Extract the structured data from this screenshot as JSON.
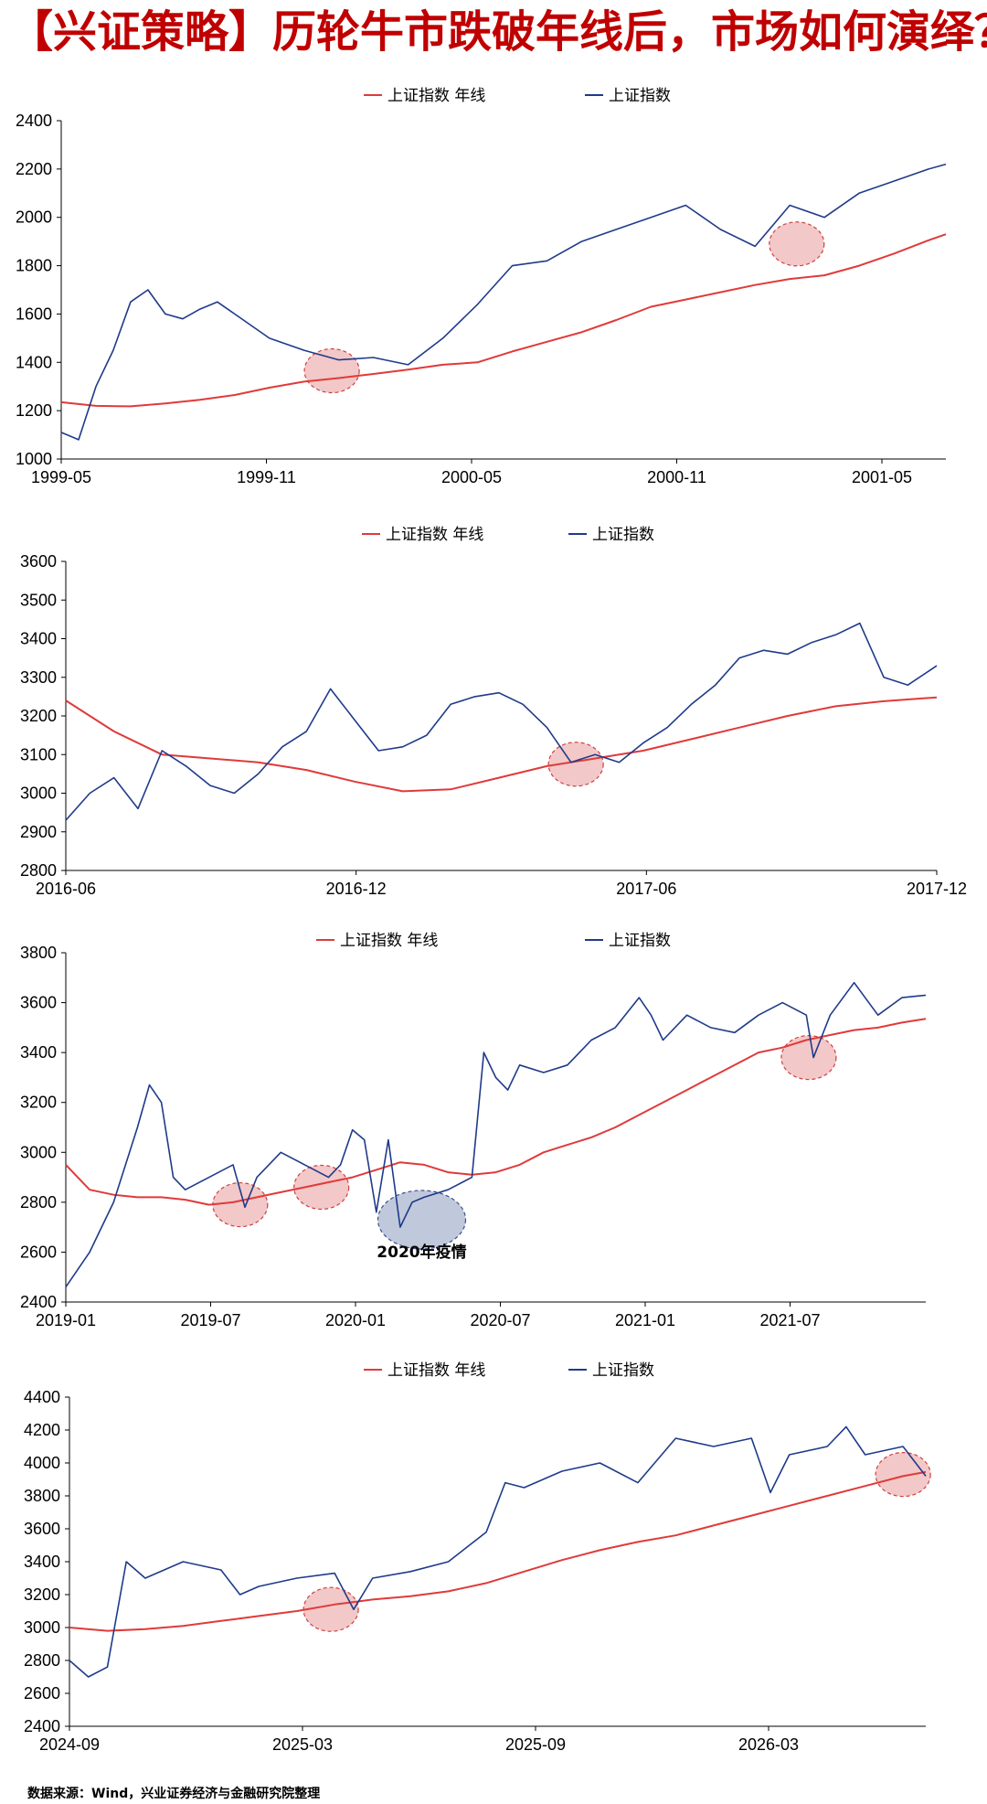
{
  "page": {
    "title": "【兴证策略】历轮牛市跌破年线后，市场如何演绎？",
    "source": "数据来源：Wind，兴业证券经济与金融研究院整理"
  },
  "colors": {
    "title": "#c00000",
    "ma_line": "#e03a3a",
    "index_line": "#1f3a8a",
    "highlight_red": "#e89a9a",
    "highlight_blue": "#8c9bbf"
  },
  "chart_data": [
    {
      "type": "line",
      "legend": [
        "上证指数 年线",
        "上证指数"
      ],
      "x_ticks": [
        "1999-05",
        "1999-11",
        "2000-05",
        "2000-11",
        "2001-05"
      ],
      "ylim": [
        1000,
        2400
      ],
      "y_ticks": [
        1000,
        1200,
        1400,
        1600,
        1800,
        2000,
        2200,
        2400
      ],
      "xlim": [
        0,
        25.5
      ],
      "series": [
        {
          "name": "上证指数 年线",
          "x": [
            0,
            1,
            2,
            3,
            4,
            5,
            6,
            7,
            8,
            9,
            10,
            11,
            12,
            13,
            14,
            15,
            16,
            17,
            18,
            19,
            20,
            21,
            22,
            23,
            24,
            25,
            25.5
          ],
          "y": [
            1235,
            1220,
            1218,
            1230,
            1245,
            1265,
            1295,
            1320,
            1335,
            1352,
            1370,
            1390,
            1400,
            1445,
            1485,
            1525,
            1575,
            1630,
            1660,
            1690,
            1720,
            1745,
            1760,
            1800,
            1850,
            1905,
            1930
          ]
        },
        {
          "name": "上证指数",
          "x": [
            0,
            0.5,
            1,
            1.5,
            2,
            2.5,
            3,
            3.5,
            4,
            4.5,
            5,
            6,
            7,
            8,
            9,
            10,
            11,
            12,
            13,
            14,
            15,
            16,
            17,
            18,
            19,
            20,
            21,
            22,
            23,
            24,
            25,
            25.5
          ],
          "y": [
            1110,
            1080,
            1300,
            1450,
            1650,
            1700,
            1600,
            1580,
            1620,
            1650,
            1600,
            1500,
            1450,
            1410,
            1420,
            1390,
            1500,
            1640,
            1800,
            1820,
            1900,
            1950,
            2000,
            2050,
            1950,
            1880,
            2050,
            2000,
            2100,
            2150,
            2200,
            2220
          ]
        }
      ],
      "highlights": [
        {
          "x": 7.8,
          "y": 1365,
          "color": "red"
        },
        {
          "x": 21.2,
          "y": 1890,
          "color": "red"
        }
      ],
      "annotations": []
    },
    {
      "type": "line",
      "legend": [
        "上证指数 年线",
        "上证指数"
      ],
      "x_ticks": [
        "2016-06",
        "2016-12",
        "2017-06",
        "2017-12"
      ],
      "ylim": [
        2800,
        3600
      ],
      "y_ticks": [
        2800,
        2900,
        3000,
        3100,
        3200,
        3300,
        3400,
        3500,
        3600
      ],
      "xlim": [
        0,
        18.1
      ],
      "series": [
        {
          "name": "上证指数 年线",
          "x": [
            0,
            1,
            2,
            3,
            4,
            5,
            6,
            7,
            8,
            9,
            10,
            11,
            12,
            13,
            14,
            15,
            16,
            17,
            18.1
          ],
          "y": [
            3240,
            3160,
            3100,
            3090,
            3080,
            3060,
            3030,
            3005,
            3010,
            3040,
            3070,
            3090,
            3110,
            3140,
            3170,
            3200,
            3225,
            3238,
            3248
          ]
        },
        {
          "name": "上证指数",
          "x": [
            0,
            0.5,
            1,
            1.5,
            2,
            2.5,
            3,
            3.5,
            4,
            4.5,
            5,
            5.5,
            6,
            6.5,
            7,
            7.5,
            8,
            8.5,
            9,
            9.5,
            10,
            10.5,
            11,
            11.5,
            12,
            12.5,
            13,
            13.5,
            14,
            14.5,
            15,
            15.5,
            16,
            16.5,
            17,
            17.5,
            18.1
          ],
          "y": [
            2930,
            3000,
            3040,
            2960,
            3110,
            3070,
            3020,
            3000,
            3050,
            3120,
            3160,
            3270,
            3190,
            3110,
            3120,
            3150,
            3230,
            3250,
            3260,
            3230,
            3170,
            3080,
            3100,
            3080,
            3130,
            3170,
            3230,
            3280,
            3350,
            3370,
            3360,
            3390,
            3410,
            3440,
            3300,
            3280,
            3330
          ]
        }
      ],
      "highlights": [
        {
          "x": 10.6,
          "y": 3075,
          "color": "red"
        }
      ],
      "annotations": []
    },
    {
      "type": "line",
      "legend": [
        "上证指数 年线",
        "上证指数"
      ],
      "x_ticks": [
        "2019-01",
        "2019-07",
        "2020-01",
        "2020-07",
        "2021-01",
        "2021-07"
      ],
      "ylim": [
        2400,
        3800
      ],
      "y_ticks": [
        2400,
        2600,
        2800,
        3000,
        3200,
        3400,
        3600,
        3800
      ],
      "xlim": [
        0,
        36
      ],
      "series": [
        {
          "name": "上证指数 年线",
          "x": [
            0,
            1,
            2,
            3,
            4,
            5,
            6,
            7,
            8,
            9,
            10,
            11,
            12,
            13,
            14,
            15,
            16,
            17,
            18,
            19,
            20,
            21,
            22,
            23,
            24,
            25,
            26,
            27,
            28,
            29,
            30,
            31,
            32,
            33,
            34,
            35,
            36
          ],
          "y": [
            2950,
            2850,
            2830,
            2820,
            2820,
            2810,
            2790,
            2800,
            2820,
            2840,
            2860,
            2880,
            2900,
            2930,
            2960,
            2950,
            2920,
            2910,
            2920,
            2950,
            3000,
            3030,
            3060,
            3100,
            3150,
            3200,
            3250,
            3300,
            3350,
            3400,
            3420,
            3450,
            3470,
            3490,
            3500,
            3520,
            3535
          ]
        },
        {
          "name": "上证指数",
          "x": [
            0,
            1,
            2,
            3,
            3.5,
            4,
            4.5,
            5,
            6,
            7,
            7.5,
            8,
            9,
            10,
            11,
            11.5,
            12,
            12.5,
            13,
            13.5,
            14,
            14.5,
            15,
            16,
            17,
            17.5,
            18,
            18.5,
            19,
            20,
            21,
            22,
            23,
            24,
            24.5,
            25,
            26,
            27,
            28,
            29,
            30,
            31,
            31.3,
            32,
            33,
            34,
            35,
            36
          ],
          "y": [
            2460,
            2600,
            2800,
            3100,
            3270,
            3200,
            2900,
            2850,
            2900,
            2950,
            2780,
            2900,
            3000,
            2950,
            2900,
            2950,
            3090,
            3050,
            2760,
            3050,
            2700,
            2800,
            2820,
            2850,
            2900,
            3400,
            3300,
            3250,
            3350,
            3320,
            3350,
            3450,
            3500,
            3620,
            3550,
            3450,
            3550,
            3500,
            3480,
            3550,
            3600,
            3550,
            3380,
            3550,
            3680,
            3550,
            3620,
            3630
          ]
        }
      ],
      "highlights": [
        {
          "x": 7.3,
          "y": 2790,
          "color": "red"
        },
        {
          "x": 10.7,
          "y": 2860,
          "color": "red"
        },
        {
          "x": 14.9,
          "y": 2730,
          "color": "blue"
        },
        {
          "x": 31.1,
          "y": 3380,
          "color": "red"
        }
      ],
      "annotations": [
        {
          "text": "2020年疫情",
          "x": 14.9,
          "y": 2580
        }
      ]
    },
    {
      "type": "line",
      "legend": [
        "上证指数 年线",
        "上证指数"
      ],
      "x_ticks": [
        "2024-09",
        "2025-03",
        "2025-09",
        "2026-03"
      ],
      "ylim": [
        2400,
        4400
      ],
      "y_ticks": [
        2400,
        2600,
        2800,
        3000,
        3200,
        3400,
        3600,
        3800,
        4000,
        4200,
        4400
      ],
      "xlim": [
        0,
        22.6
      ],
      "series": [
        {
          "name": "上证指数 年线",
          "x": [
            0,
            1,
            2,
            3,
            4,
            5,
            6,
            7,
            8,
            9,
            10,
            11,
            12,
            13,
            14,
            15,
            16,
            17,
            18,
            19,
            20,
            21,
            22,
            22.6
          ],
          "y": [
            3000,
            2980,
            2990,
            3010,
            3040,
            3070,
            3100,
            3140,
            3170,
            3190,
            3220,
            3270,
            3340,
            3410,
            3470,
            3520,
            3560,
            3620,
            3680,
            3740,
            3800,
            3860,
            3920,
            3945
          ]
        },
        {
          "name": "上证指数",
          "x": [
            0,
            0.5,
            1,
            1.5,
            2,
            3,
            4,
            4.5,
            5,
            6,
            7,
            7.5,
            8,
            9,
            10,
            11,
            11.5,
            12,
            13,
            14,
            15,
            16,
            17,
            18,
            18.5,
            19,
            20,
            20.5,
            21,
            22,
            22.6
          ],
          "y": [
            2800,
            2700,
            2760,
            3400,
            3300,
            3400,
            3350,
            3200,
            3250,
            3300,
            3330,
            3110,
            3300,
            3340,
            3400,
            3580,
            3880,
            3850,
            3950,
            4000,
            3880,
            4150,
            4100,
            4150,
            3820,
            4050,
            4100,
            4220,
            4050,
            4100,
            3920
          ]
        }
      ],
      "highlights": [
        {
          "x": 6.9,
          "y": 3110,
          "color": "red"
        },
        {
          "x": 22.0,
          "y": 3930,
          "color": "red"
        }
      ],
      "annotations": []
    }
  ]
}
